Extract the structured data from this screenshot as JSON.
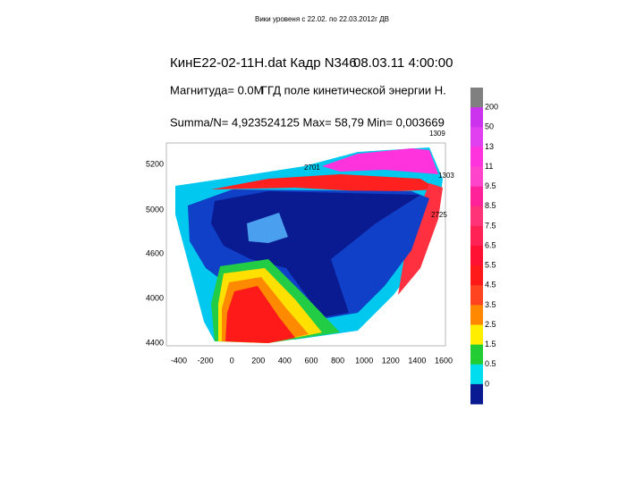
{
  "slide_title": "Вики уровеня с 22.02. по 22.03.2012г ДВ",
  "header": {
    "file": "КинЕ22-02-11Н.dat Кадр N346",
    "datetime": "08.03.11 4:00:00",
    "magnitude": "Магнитуда= 0.0М",
    "field": "ГГД поле кинетической энергии Н.",
    "stats": "Summa/N= 4,923524125 Max= 58,79 Min= 0,003669"
  },
  "y_axis_labels": [
    "5200",
    "5000",
    "4600",
    "4000",
    "4400"
  ],
  "x_axis_labels": [
    "-400",
    "-200",
    "0",
    "200",
    "400",
    "600",
    "800",
    "1000",
    "1200",
    "1400",
    "1600"
  ],
  "point_labels": [
    "1309",
    "1303",
    "2725",
    "2701"
  ],
  "colorbar_labels": [
    "200",
    "50",
    "13",
    "11",
    "9.5",
    "8.5",
    "7.5",
    "6.5",
    "5.5",
    "4.5",
    "3.5",
    "2.5",
    "1.5",
    "0.5",
    "0"
  ]
}
